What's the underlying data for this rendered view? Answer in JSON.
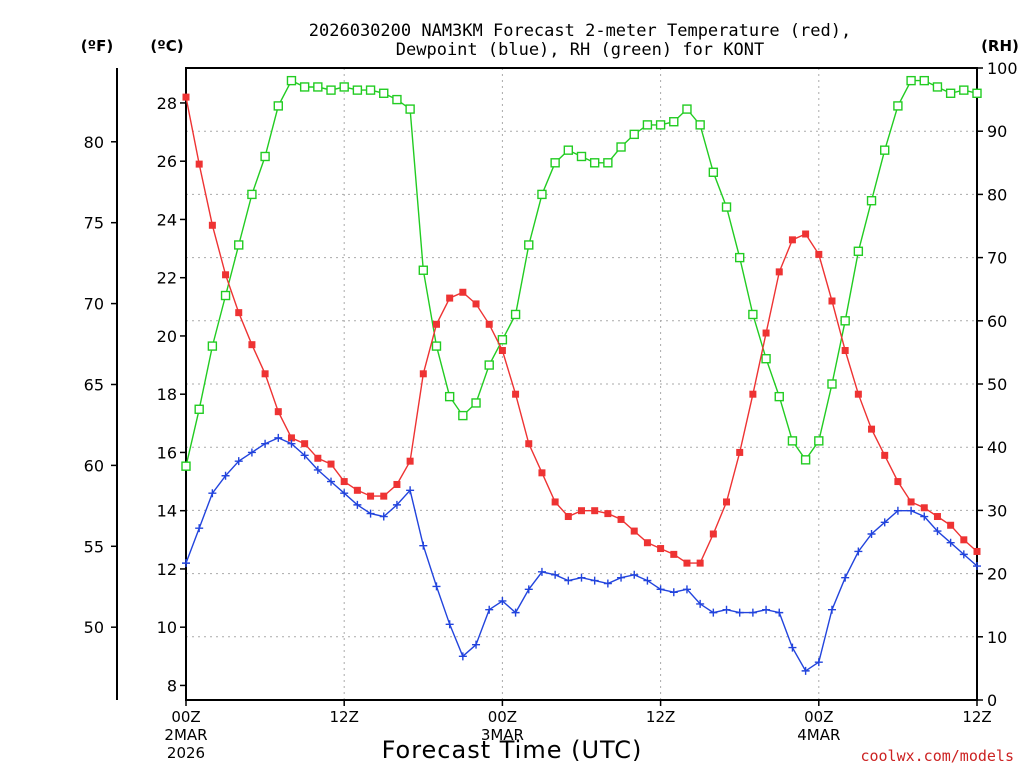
{
  "colors": {
    "temperature": "#ee3333",
    "dewpoint": "#2244dd",
    "rh": "#22cc22",
    "grid": "#aaaaaa",
    "credit": "#cc2222"
  },
  "chart_data": {
    "type": "line",
    "title_line1": "2026030200 NAM3KM Forecast 2-meter Temperature (red),",
    "title_line2": "Dewpoint (blue), RH (green) for KONT",
    "xlabel": "Forecast Time (UTC)",
    "unit_f": "(ºF)",
    "unit_c": "(ºC)",
    "unit_rh": "(RH)",
    "credit": "coolwx.com/models",
    "x_range_hours": [
      0,
      60
    ],
    "x_ticks": [
      {
        "hour": 0,
        "label": "00Z",
        "sub1": "2MAR",
        "sub2": "2026"
      },
      {
        "hour": 12,
        "label": "12Z",
        "sub1": "",
        "sub2": ""
      },
      {
        "hour": 24,
        "label": "00Z",
        "sub1": "3MAR",
        "sub2": ""
      },
      {
        "hour": 36,
        "label": "12Z",
        "sub1": "",
        "sub2": ""
      },
      {
        "hour": 48,
        "label": "00Z",
        "sub1": "4MAR",
        "sub2": ""
      },
      {
        "hour": 60,
        "label": "12Z",
        "sub1": "",
        "sub2": ""
      }
    ],
    "celsius_axis": {
      "range": [
        7.5,
        29.2
      ],
      "ticks": [
        8,
        10,
        12,
        14,
        16,
        18,
        20,
        22,
        24,
        26,
        28
      ]
    },
    "fahrenheit_ticks": [
      50,
      55,
      60,
      65,
      70,
      75,
      80
    ],
    "rh_axis": {
      "range": [
        0,
        100
      ],
      "ticks": [
        0,
        10,
        20,
        30,
        40,
        50,
        60,
        70,
        80,
        90,
        100
      ]
    },
    "series": [
      {
        "name": "Temperature",
        "unit": "C",
        "marker": "filled-square",
        "x": [
          0,
          1,
          2,
          3,
          4,
          5,
          6,
          7,
          8,
          9,
          10,
          11,
          12,
          13,
          14,
          15,
          16,
          17,
          18,
          19,
          20,
          21,
          22,
          23,
          24,
          25,
          26,
          27,
          28,
          29,
          30,
          31,
          32,
          33,
          34,
          35,
          36,
          37,
          38,
          39,
          40,
          41,
          42,
          43,
          44,
          45,
          46,
          47,
          48,
          49,
          50,
          51,
          52,
          53,
          54,
          55,
          56,
          57,
          58,
          59,
          60
        ],
        "values": [
          28.2,
          25.9,
          23.8,
          22.1,
          20.8,
          19.7,
          18.7,
          17.4,
          16.5,
          16.3,
          15.8,
          15.6,
          15.0,
          14.7,
          14.5,
          14.5,
          14.9,
          15.7,
          18.7,
          20.4,
          21.3,
          21.5,
          21.1,
          20.4,
          19.5,
          18.0,
          16.3,
          15.3,
          14.3,
          13.8,
          14.0,
          14.0,
          13.9,
          13.7,
          13.3,
          12.9,
          12.7,
          12.5,
          12.2,
          12.2,
          13.2,
          14.3,
          16.0,
          18.0,
          20.1,
          22.2,
          23.3,
          23.5,
          22.8,
          21.2,
          19.5,
          18.0,
          16.8,
          15.9,
          15.0,
          14.3,
          14.1,
          13.8,
          13.5,
          13.0,
          12.6
        ]
      },
      {
        "name": "Dewpoint",
        "unit": "C",
        "marker": "plus",
        "x": [
          0,
          1,
          2,
          3,
          4,
          5,
          6,
          7,
          8,
          9,
          10,
          11,
          12,
          13,
          14,
          15,
          16,
          17,
          18,
          19,
          20,
          21,
          22,
          23,
          24,
          25,
          26,
          27,
          28,
          29,
          30,
          31,
          32,
          33,
          34,
          35,
          36,
          37,
          38,
          39,
          40,
          41,
          42,
          43,
          44,
          45,
          46,
          47,
          48,
          49,
          50,
          51,
          52,
          53,
          54,
          55,
          56,
          57,
          58,
          59,
          60
        ],
        "values": [
          12.2,
          13.4,
          14.6,
          15.2,
          15.7,
          16.0,
          16.3,
          16.5,
          16.3,
          15.9,
          15.4,
          15.0,
          14.6,
          14.2,
          13.9,
          13.8,
          14.2,
          14.7,
          12.8,
          11.4,
          10.1,
          9.0,
          9.4,
          10.6,
          10.9,
          10.5,
          11.3,
          11.9,
          11.8,
          11.6,
          11.7,
          11.6,
          11.5,
          11.7,
          11.8,
          11.6,
          11.3,
          11.2,
          11.3,
          10.8,
          10.5,
          10.6,
          10.5,
          10.5,
          10.6,
          10.5,
          9.3,
          8.5,
          8.8,
          10.6,
          11.7,
          12.6,
          13.2,
          13.6,
          14.0,
          14.0,
          13.8,
          13.3,
          12.9,
          12.5,
          12.1
        ]
      },
      {
        "name": "RH",
        "unit": "%",
        "marker": "open-square",
        "x": [
          0,
          1,
          2,
          3,
          4,
          5,
          6,
          7,
          8,
          9,
          10,
          11,
          12,
          13,
          14,
          15,
          16,
          17,
          18,
          19,
          20,
          21,
          22,
          23,
          24,
          25,
          26,
          27,
          28,
          29,
          30,
          31,
          32,
          33,
          34,
          35,
          36,
          37,
          38,
          39,
          40,
          41,
          42,
          43,
          44,
          45,
          46,
          47,
          48,
          49,
          50,
          51,
          52,
          53,
          54,
          55,
          56,
          57,
          58,
          59,
          60
        ],
        "values": [
          37,
          46,
          56,
          64,
          72,
          80,
          86,
          94,
          98,
          97,
          97,
          96.5,
          97,
          96.5,
          96.5,
          96,
          95,
          93.5,
          68,
          56,
          48,
          45,
          47,
          53,
          57,
          61,
          72,
          80,
          85,
          87,
          86,
          85,
          85,
          87.5,
          89.5,
          91,
          91,
          91.5,
          93.5,
          91,
          83.5,
          78,
          70,
          61,
          54,
          48,
          41,
          38,
          41,
          50,
          60,
          71,
          79,
          87,
          94,
          98,
          98,
          97,
          96,
          96.5,
          96
        ]
      }
    ]
  }
}
